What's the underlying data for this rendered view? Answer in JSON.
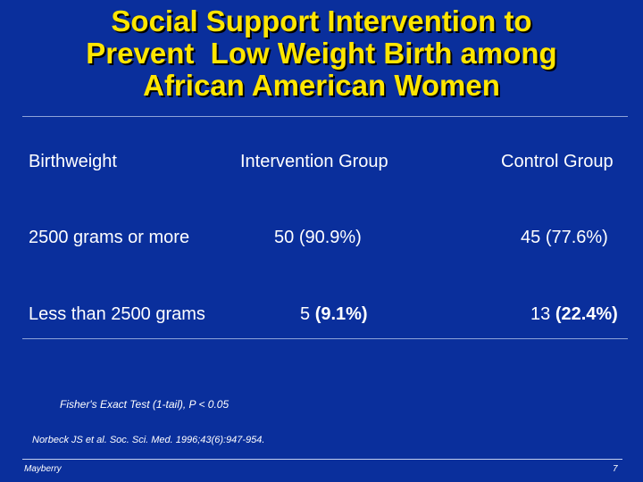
{
  "slide": {
    "title_lines": [
      "Social Support Intervention to",
      "Prevent  Low Weight Birth among",
      "African American Women"
    ],
    "table": {
      "headers": [
        "Birthweight",
        "Intervention Group",
        "Control Group"
      ],
      "rows": [
        {
          "label": "2500 grams or more",
          "intervention_count": "50",
          "intervention_pct": "(90.9%)",
          "control_count": "45",
          "control_pct": "(77.6%)"
        },
        {
          "label": "Less than 2500 grams",
          "intervention_count": "5",
          "intervention_pct": "(9.1%)",
          "control_count": "13",
          "control_pct": "(22.4%)"
        }
      ]
    },
    "statistic_note": "Fisher's Exact Test (1-tail), P < 0.05",
    "citation": "Norbeck JS et al.  Soc. Sci. Med. 1996;43(6):947-954.",
    "footer_left": "Mayberry",
    "page_number": "7"
  },
  "colors": {
    "background": "#0a2f9c",
    "title": "#ffe600",
    "text": "#ffffff",
    "rule": "#8fa3d8"
  }
}
